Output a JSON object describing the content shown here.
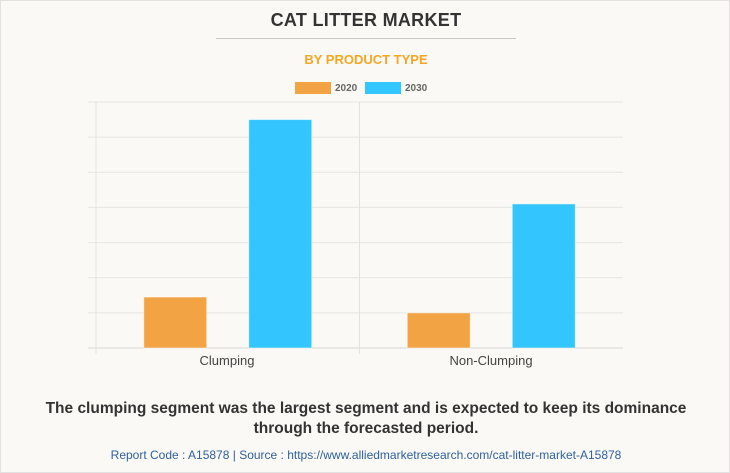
{
  "header": {
    "title": "CAT LITTER MARKET",
    "subtitle": "BY PRODUCT TYPE"
  },
  "colors": {
    "series_2020": "#f2a444",
    "series_2030": "#33c6fe",
    "subtitle": "#f5a623",
    "source_link": "#2f5f9e"
  },
  "chart_data": {
    "type": "bar",
    "title": "CAT LITTER MARKET",
    "subtitle": "BY PRODUCT TYPE",
    "xlabel": "",
    "ylabel": "",
    "categories": [
      "Clumping",
      "Non-Clumping"
    ],
    "series": [
      {
        "name": "2020",
        "values": [
          1.45,
          1.0
        ]
      },
      {
        "name": "2030",
        "values": [
          6.5,
          4.1
        ]
      }
    ],
    "ylim": [
      0,
      7
    ],
    "y_ticks_shown": false,
    "grid": true,
    "legend": "top-center",
    "units": "relative (no y-axis values shown)"
  },
  "footer": {
    "caption": "The clumping segment was the largest segment and is expected to keep its dominance through the forecasted period.",
    "source": "Report Code : A15878  |  Source : https://www.alliedmarketresearch.com/cat-litter-market-A15878"
  }
}
